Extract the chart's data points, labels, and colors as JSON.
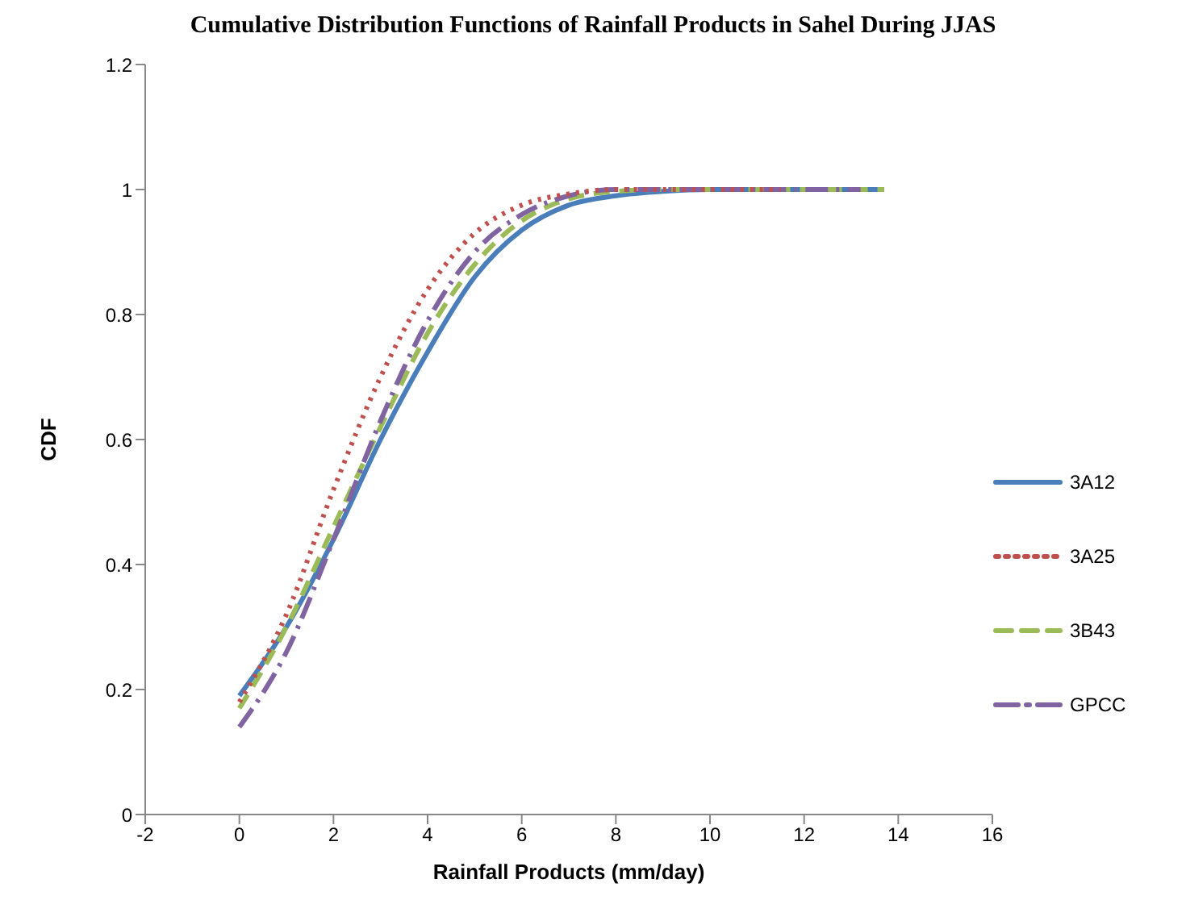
{
  "chart_data": {
    "type": "line",
    "title": "Cumulative Distribution Functions of Rainfall Products in Sahel During JJAS",
    "xlabel": "Rainfall Products (mm/day)",
    "ylabel": "CDF",
    "xlim": [
      -2,
      16
    ],
    "xticks": [
      -2,
      0,
      2,
      4,
      6,
      8,
      10,
      12,
      14,
      16
    ],
    "ylim": [
      0,
      1.2
    ],
    "yticks": [
      0,
      0.2,
      0.4,
      0.6,
      0.8,
      1,
      1.2
    ],
    "grid": false,
    "legend": "right",
    "marker": "none",
    "series": [
      {
        "name": "3A12",
        "color": "#4a7ebb",
        "line_style": "solid",
        "x": [
          0,
          1,
          2,
          3,
          4,
          5,
          6,
          7,
          8,
          9,
          10,
          13.7
        ],
        "values": [
          0.19,
          0.3,
          0.44,
          0.6,
          0.74,
          0.86,
          0.935,
          0.975,
          0.99,
          0.997,
          1,
          1
        ]
      },
      {
        "name": "3A25",
        "color": "#c0504d",
        "line_style": "dotted",
        "x": [
          0,
          1,
          2,
          3,
          4,
          5,
          6,
          7,
          8,
          11.5
        ],
        "values": [
          0.18,
          0.32,
          0.52,
          0.7,
          0.84,
          0.93,
          0.975,
          0.993,
          1,
          1
        ]
      },
      {
        "name": "3B43",
        "color": "#9bbb59",
        "line_style": "dashed",
        "x": [
          0,
          1,
          2,
          3,
          4,
          5,
          6,
          7,
          8,
          9,
          13.7
        ],
        "values": [
          0.17,
          0.3,
          0.46,
          0.62,
          0.77,
          0.88,
          0.95,
          0.985,
          0.997,
          1,
          1
        ]
      },
      {
        "name": "GPCC",
        "color": "#8064a2",
        "line_style": "dashdot",
        "x": [
          0,
          1,
          2,
          3,
          4,
          5,
          6,
          7,
          8,
          13.2
        ],
        "values": [
          0.14,
          0.26,
          0.44,
          0.63,
          0.79,
          0.9,
          0.96,
          0.99,
          1,
          1
        ]
      }
    ]
  }
}
